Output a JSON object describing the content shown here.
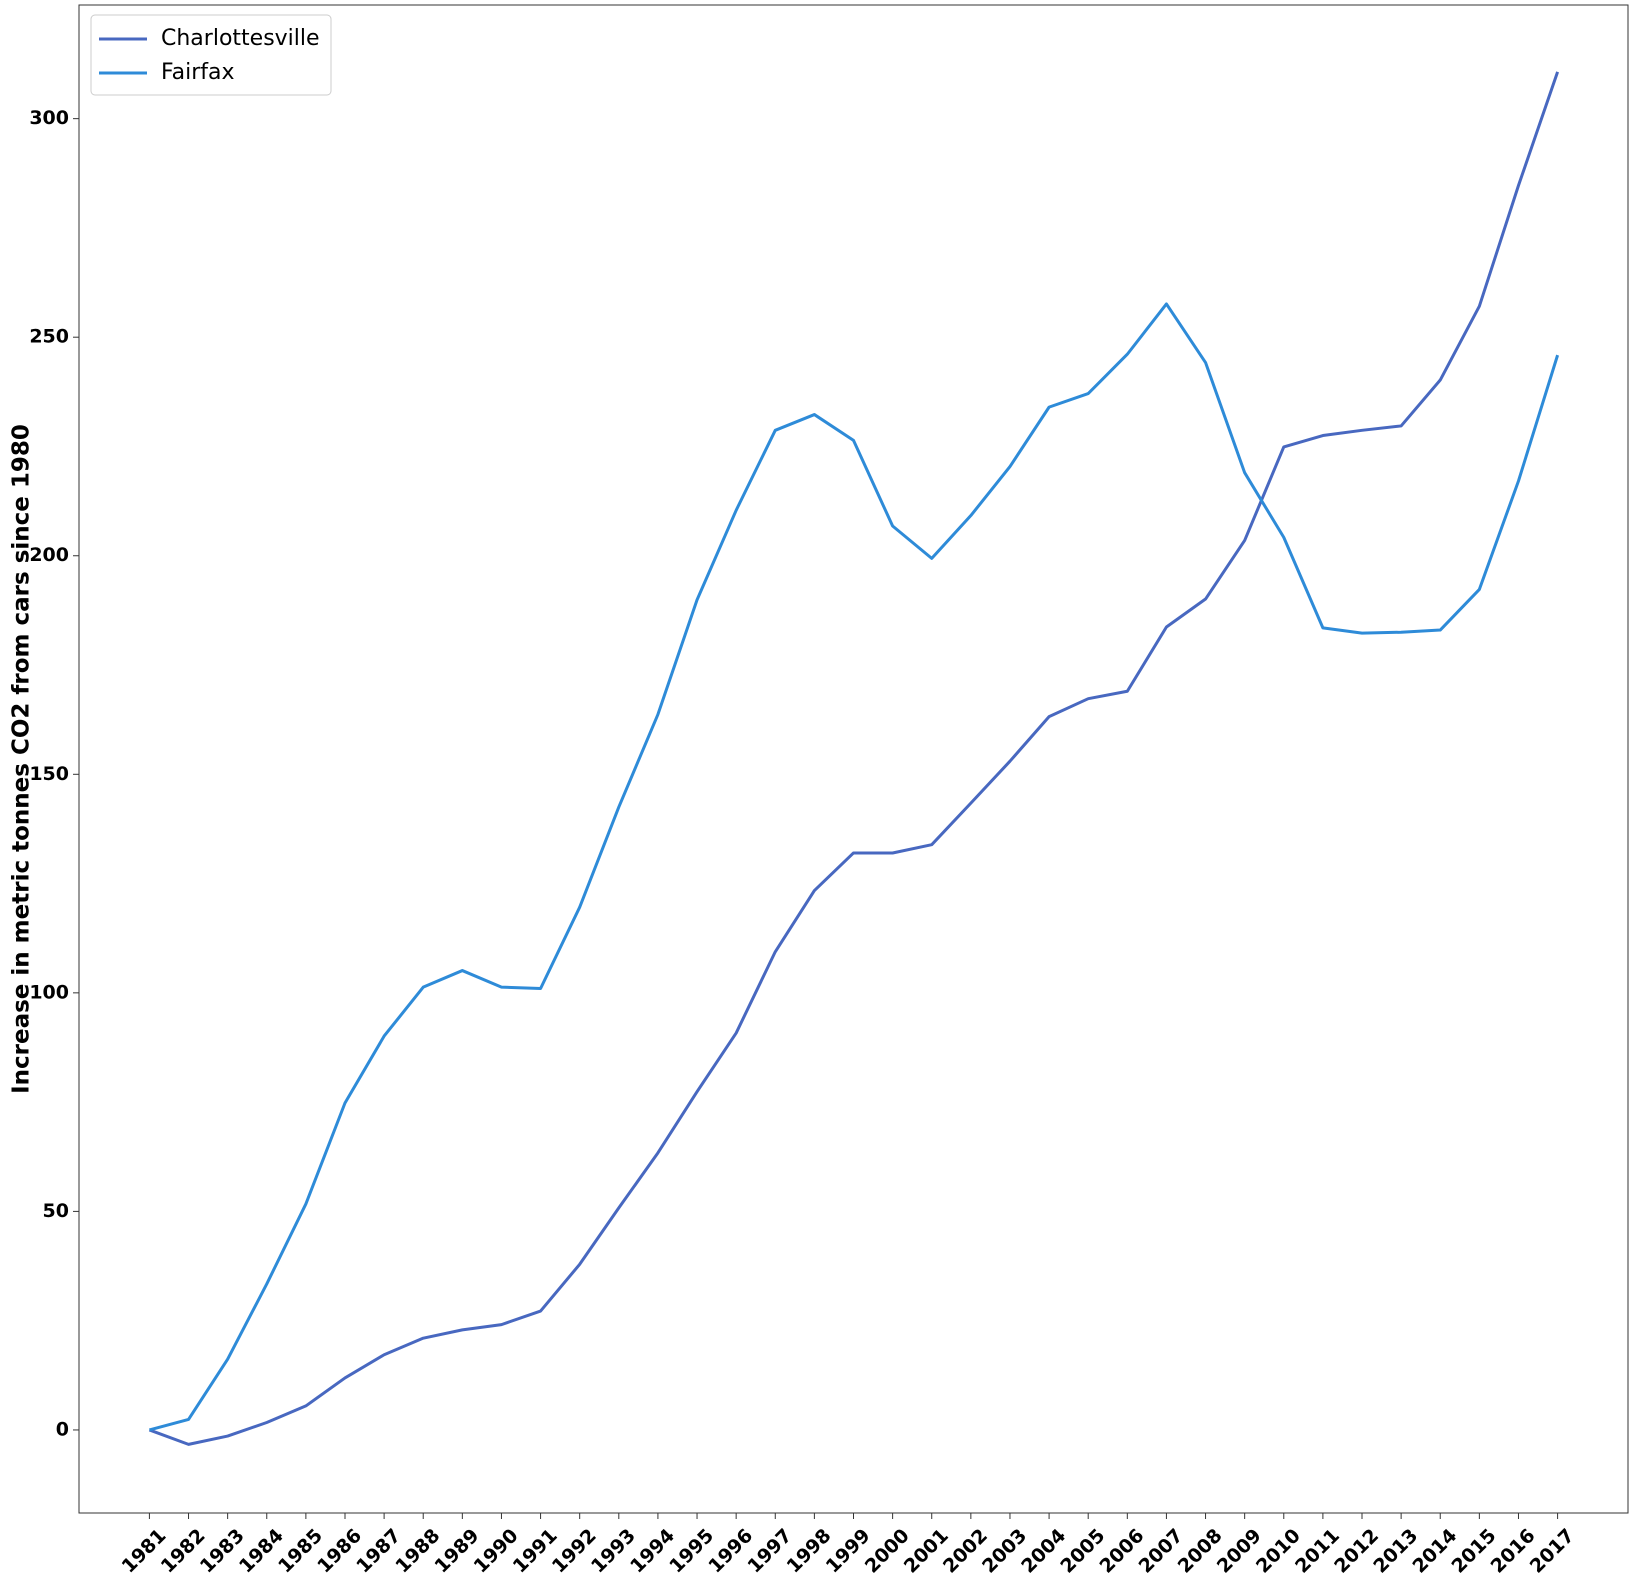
{
  "chart_data": {
    "type": "line",
    "y_label": "Increase in metric tonnes CO2 from cars since 1980",
    "x": [
      1981,
      1982,
      1983,
      1984,
      1985,
      1986,
      1987,
      1988,
      1989,
      1990,
      1991,
      1992,
      1993,
      1994,
      1995,
      1996,
      1997,
      1998,
      1999,
      2000,
      2001,
      2002,
      2003,
      2004,
      2005,
      2006,
      2007,
      2008,
      2009,
      2010,
      2011,
      2012,
      2013,
      2014,
      2015,
      2016,
      2017
    ],
    "xlim": [
      1979.2,
      2018.8
    ],
    "xticks": [
      1981,
      1982,
      1983,
      1984,
      1985,
      1986,
      1987,
      1988,
      1989,
      1990,
      1991,
      1992,
      1993,
      1994,
      1995,
      1996,
      1997,
      1998,
      1999,
      2000,
      2001,
      2002,
      2003,
      2004,
      2005,
      2006,
      2007,
      2008,
      2009,
      2010,
      2011,
      2012,
      2013,
      2014,
      2015,
      2016,
      2017
    ],
    "ylim": [
      -19,
      326
    ],
    "yticks": [
      0,
      50,
      100,
      150,
      200,
      250,
      300
    ],
    "legend": "upper left",
    "series": [
      {
        "name": "Charlottesville",
        "color": "#4868c0",
        "values": [
          0,
          -3.3,
          -1.4,
          1.7,
          5.5,
          11.9,
          17.2,
          21.0,
          22.9,
          24.1,
          27.2,
          37.9,
          50.8,
          63.4,
          77.4,
          90.8,
          109.4,
          123.4,
          132.0,
          132.0,
          133.9,
          143.4,
          153.0,
          163.2,
          167.3,
          169.0,
          183.7,
          190.1,
          203.5,
          224.9,
          227.5,
          228.7,
          229.7,
          240.2,
          257.1,
          284.7,
          310.7
        ]
      },
      {
        "name": "Fairfax",
        "color": "#2e8bd8",
        "values": [
          0,
          2.4,
          16.2,
          33.4,
          51.7,
          74.8,
          90.1,
          101.3,
          105.1,
          101.3,
          101.0,
          119.6,
          142.5,
          163.7,
          189.9,
          210.4,
          228.7,
          232.3,
          226.4,
          206.8,
          199.4,
          209.2,
          220.4,
          234.0,
          237.1,
          246.1,
          257.6,
          244.2,
          219.0,
          204.2,
          183.5,
          182.3,
          182.5,
          183.0,
          192.3,
          217.1,
          245.9
        ]
      }
    ]
  }
}
